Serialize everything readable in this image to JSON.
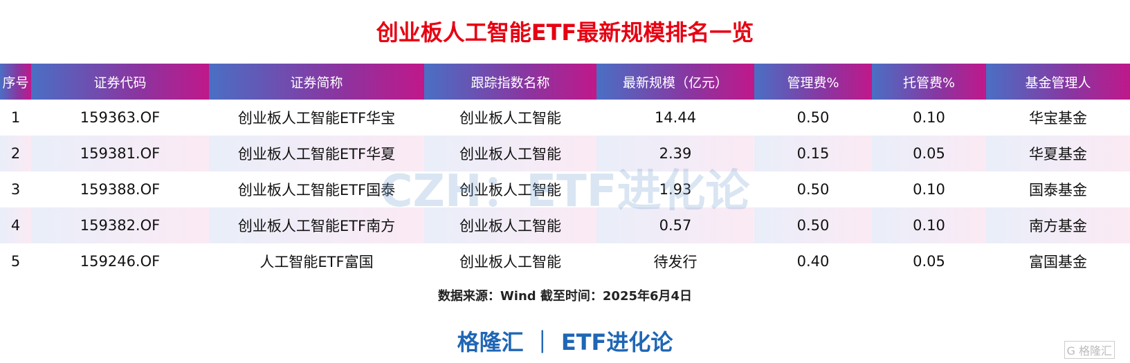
{
  "title": "创业板人工智能ETF最新规模排名一览",
  "columns": [
    "序号",
    "证券代码",
    "证券简称",
    "跟踪指数名称",
    "最新规模（亿元）",
    "管理费%",
    "托管费%",
    "基金管理人"
  ],
  "rows": [
    [
      "1",
      "159363.OF",
      "创业板人工智能ETF华宝",
      "创业板人工智能",
      "14.44",
      "0.50",
      "0.10",
      "华宝基金"
    ],
    [
      "2",
      "159381.OF",
      "创业板人工智能ETF华夏",
      "创业板人工智能",
      "2.39",
      "0.15",
      "0.05",
      "华夏基金"
    ],
    [
      "3",
      "159388.OF",
      "创业板人工智能ETF国泰",
      "创业板人工智能",
      "1.93",
      "0.50",
      "0.10",
      "国泰基金"
    ],
    [
      "4",
      "159382.OF",
      "创业板人工智能ETF南方",
      "创业板人工智能",
      "0.57",
      "0.50",
      "0.10",
      "南方基金"
    ],
    [
      "5",
      "159246.OF",
      "人工智能ETF富国",
      "创业板人工智能",
      "待发行",
      "0.40",
      "0.05",
      "富国基金"
    ]
  ],
  "watermark": "CZH：ETF进化论",
  "source": "数据来源：Wind 截至时间：2025年6月4日",
  "footer": "格隆汇 ｜ ETF进化论",
  "logo": "格隆汇"
}
